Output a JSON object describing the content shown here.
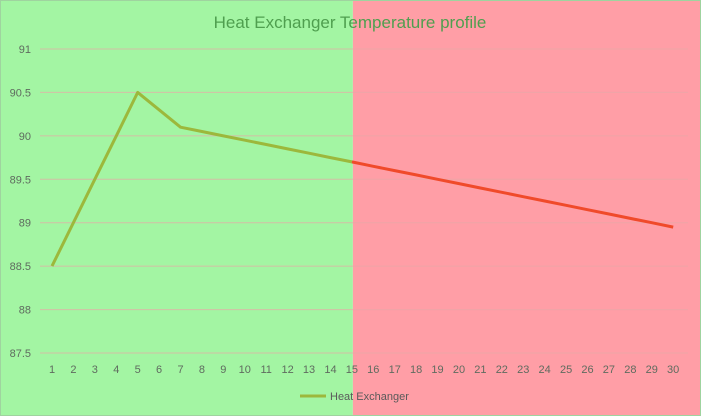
{
  "chart_data": {
    "type": "line",
    "title": "Heat Exchanger Temperature profile",
    "xlabel": "",
    "ylabel": "",
    "x": [
      1,
      2,
      3,
      4,
      5,
      6,
      7,
      8,
      9,
      10,
      11,
      12,
      13,
      14,
      15,
      16,
      17,
      18,
      19,
      20,
      21,
      22,
      23,
      24,
      25,
      26,
      27,
      28,
      29,
      30
    ],
    "ylim": [
      87.5,
      91
    ],
    "yticks": [
      87.5,
      88,
      88.5,
      89,
      89.5,
      90,
      90.5,
      91
    ],
    "ytick_labels": [
      "87.5",
      "88",
      "88.5",
      "89",
      "89.5",
      "90",
      "90.5",
      "91"
    ],
    "grid": true,
    "legend_position": "bottom",
    "series": [
      {
        "name": "Heat Exchanger",
        "values": [
          88.5,
          89.0,
          89.5,
          90.0,
          90.5,
          90.3,
          90.1,
          90.05,
          90.0,
          89.95,
          89.9,
          89.85,
          89.8,
          89.75,
          89.7,
          89.65,
          89.6,
          89.55,
          89.5,
          89.45,
          89.4,
          89.35,
          89.3,
          89.25,
          89.2,
          89.15,
          89.1,
          89.05,
          89.0,
          88.95
        ],
        "color_first_half": "#9cb83c",
        "color_second_half": "#f04a2a"
      }
    ],
    "shaded_regions": [
      {
        "x_from": 1,
        "x_to": 15,
        "color": "#a3f5a3"
      },
      {
        "x_from": 15,
        "x_to": 30,
        "color": "#ff9ea6"
      }
    ],
    "title_color": "#4f9f4f",
    "gridline_color": "#e8a8a8",
    "border_color": "#9fd39f"
  }
}
